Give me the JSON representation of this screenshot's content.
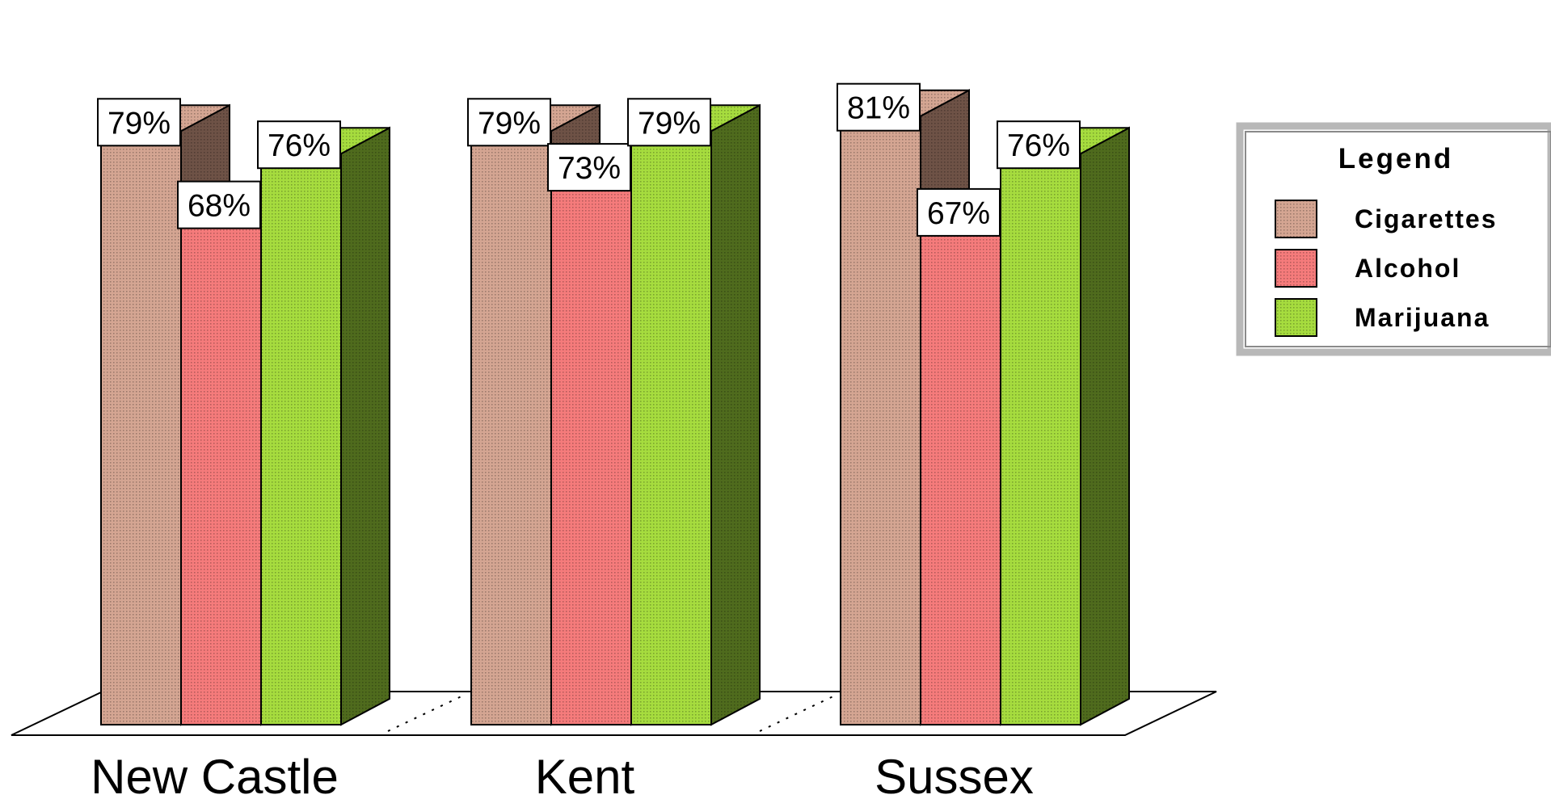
{
  "chart_data": {
    "type": "bar",
    "categories": [
      "New Castle",
      "Kent",
      "Sussex"
    ],
    "series": [
      {
        "name": "Cigarettes",
        "values": [
          79,
          79,
          81
        ],
        "color": "#d4a592",
        "side_color": "#6e5246"
      },
      {
        "name": "Alcohol",
        "values": [
          68,
          73,
          67
        ],
        "color": "#f57b7b",
        "side_color": "#b05252"
      },
      {
        "name": "Marijuana",
        "values": [
          76,
          79,
          76
        ],
        "color": "#a6dc3e",
        "side_color": "#4f6b1d"
      }
    ],
    "value_suffix": "%",
    "ylim": [
      0,
      100
    ],
    "grid": false,
    "legend": {
      "title": "Legend",
      "position": "right"
    }
  }
}
